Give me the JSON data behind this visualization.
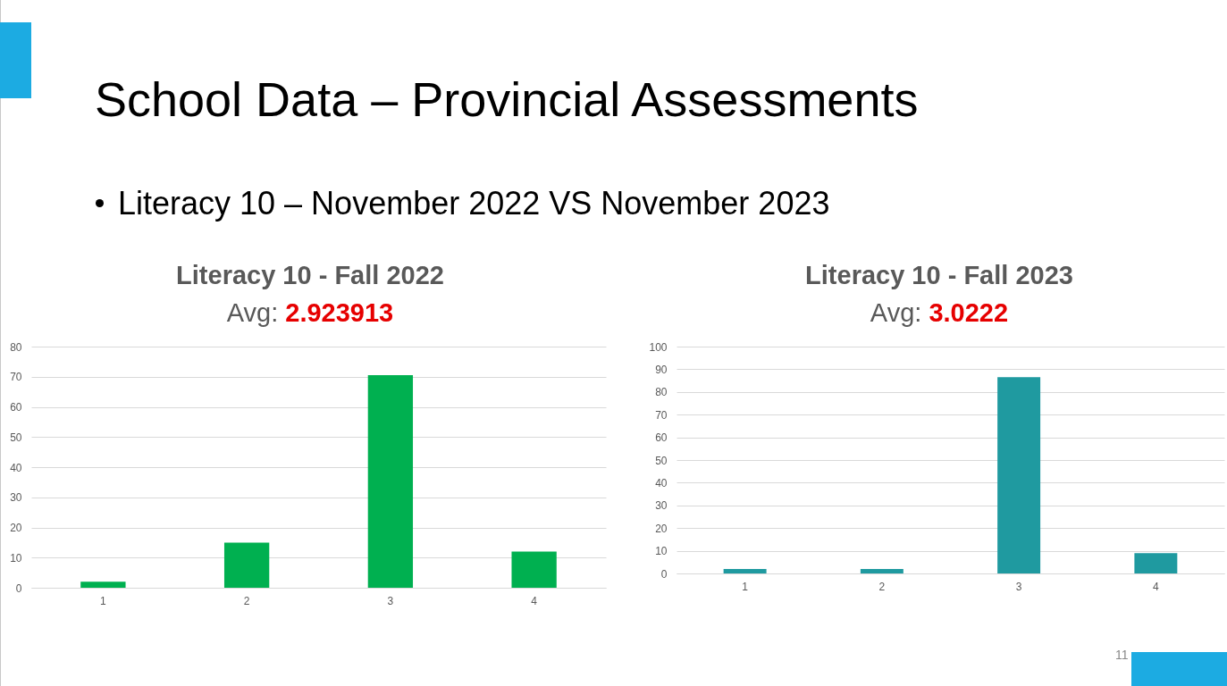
{
  "chart_data": [
    {
      "type": "other",
      "title": "School Data – Provincial Assessments",
      "subtitle": "Literacy 10 – November 2022 VS November 2023",
      "annotations": [
        "11"
      ]
    },
    {
      "type": "bar",
      "title": "Literacy 10 - Fall 2022",
      "subtitle": "Avg: 2.923913",
      "categories": [
        "1",
        "2",
        "3",
        "4"
      ],
      "values": [
        2,
        15,
        70.5,
        12
      ],
      "color": "#00b050",
      "ylim": [
        0,
        80
      ],
      "yticks": [
        0,
        10,
        20,
        30,
        40,
        50,
        60,
        70,
        80
      ],
      "grid": "y"
    },
    {
      "type": "bar",
      "title": "Literacy 10 - Fall 2023",
      "subtitle": "Avg: 3.0222",
      "categories": [
        "1",
        "2",
        "3",
        "4"
      ],
      "values": [
        2,
        2,
        86.5,
        9
      ],
      "color": "#1f9aa0",
      "ylim": [
        0,
        100
      ],
      "yticks": [
        0,
        10,
        20,
        30,
        40,
        50,
        60,
        70,
        80,
        90,
        100
      ],
      "grid": "y"
    }
  ]
}
